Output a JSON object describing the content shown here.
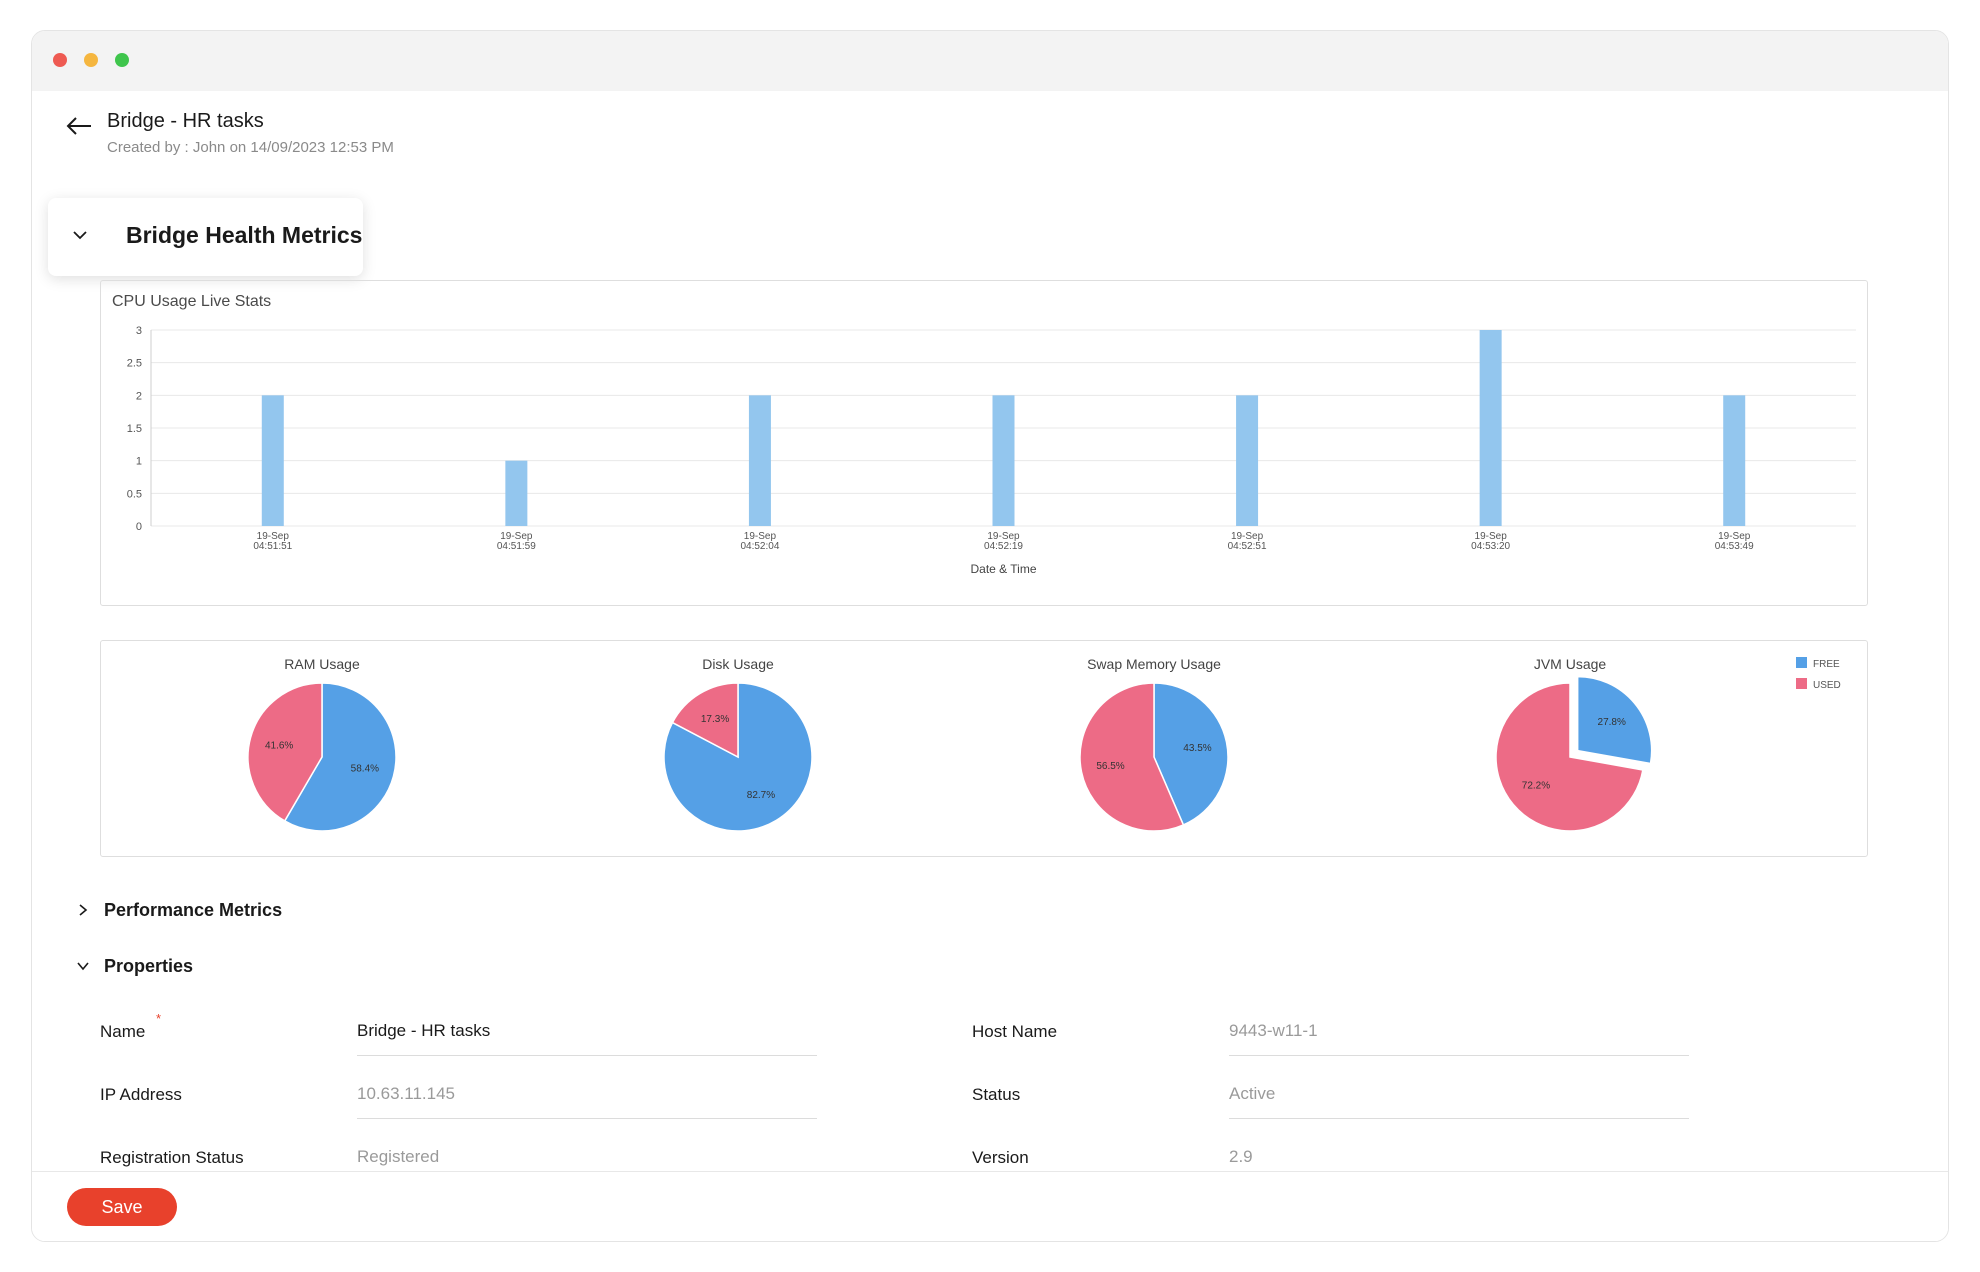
{
  "header": {
    "title": "Bridge - HR tasks",
    "meta": "Created by : John on 14/09/2023 12:53 PM"
  },
  "section": {
    "health_title": "Bridge Health Metrics",
    "performance_title": "Performance Metrics",
    "properties_title": "Properties"
  },
  "chart_data": [
    {
      "type": "bar",
      "title": "CPU Usage Live Stats",
      "xlabel": "Date & Time",
      "ylabel": "",
      "categories": [
        "19-Sep 04:51:51",
        "19-Sep 04:51:59",
        "19-Sep 04:52:04",
        "19-Sep 04:52:19",
        "19-Sep 04:52:51",
        "19-Sep 04:53:20",
        "19-Sep 04:53:49"
      ],
      "values": [
        2,
        1,
        2,
        2,
        2,
        3,
        2
      ],
      "ylim": [
        0,
        3
      ],
      "yticks": [
        0,
        0.5,
        1,
        1.5,
        2,
        2.5,
        3
      ],
      "grid": true,
      "color": "#93c6ee"
    },
    {
      "type": "pie",
      "legend": {
        "placement": "top-right",
        "entries": [
          {
            "name": "FREE",
            "color": "#55a0e6"
          },
          {
            "name": "USED",
            "color": "#ed6b86"
          }
        ]
      },
      "charts": [
        {
          "title": "RAM Usage",
          "free": 58.4,
          "used": 41.6,
          "free_label": "58.4%",
          "used_label": "41.6%",
          "exploded": null
        },
        {
          "title": "Disk Usage",
          "free": 82.7,
          "used": 17.3,
          "free_label": "82.7%",
          "used_label": "17.3%",
          "exploded": null
        },
        {
          "title": "Swap Memory Usage",
          "free": 43.5,
          "used": 56.5,
          "free_label": "43.5%",
          "used_label": "56.5%",
          "exploded": null
        },
        {
          "title": "JVM Usage",
          "free": 27.8,
          "used": 72.2,
          "free_label": "27.8%",
          "used_label": "72.2%",
          "exploded": "free"
        }
      ]
    }
  ],
  "properties": {
    "name_label": "Name",
    "name_value": "Bridge - HR tasks",
    "required_mark": "*",
    "ip_label": "IP Address",
    "ip_value": "10.63.11.145",
    "reg_label": "Registration Status",
    "reg_value": "Registered",
    "host_label": "Host Name",
    "host_value": "9443-w11-1",
    "status_label": "Status",
    "status_value": "Active",
    "version_label": "Version",
    "version_value": "2.9"
  },
  "footer": {
    "save_label": "Save"
  },
  "colors": {
    "accent": "#e8412c",
    "free": "#55a0e6",
    "used": "#ed6b86",
    "bar": "#93c6ee"
  }
}
